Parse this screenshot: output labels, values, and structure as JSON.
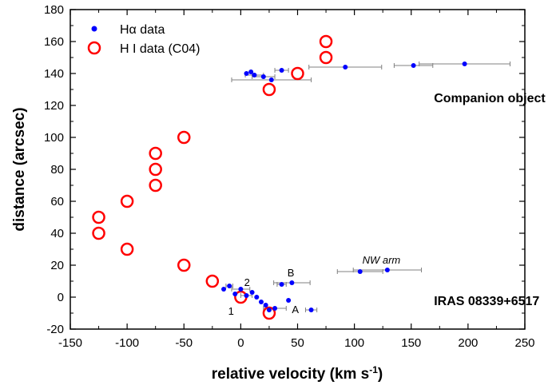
{
  "chart_data": {
    "type": "scatter",
    "xlabel": "relative velocity (km s",
    "xlabel_sup": "-1",
    "xlabel_close": ")",
    "ylabel": "distance (arcsec)",
    "xlim": [
      -150,
      250
    ],
    "ylim": [
      -20,
      180
    ],
    "xticks": [
      "-150",
      "-100",
      "-50",
      "0",
      "50",
      "100",
      "150",
      "200",
      "250"
    ],
    "yticks": [
      "-20",
      "0",
      "20",
      "40",
      "60",
      "80",
      "100",
      "120",
      "140",
      "160",
      "180"
    ],
    "legend_position": "top-left",
    "colors": {
      "halpha": "#0000ff",
      "hi": "#ff0000",
      "errorbar": "#808080"
    },
    "series": [
      {
        "name": "Hα data",
        "marker": "filled-circle",
        "points": [
          {
            "x": 5,
            "xerr": 0,
            "y": 140
          },
          {
            "x": 9,
            "xerr": 0,
            "y": 141
          },
          {
            "x": 12,
            "xerr": 8,
            "y": 139
          },
          {
            "x": 20,
            "xerr": 10,
            "y": 138
          },
          {
            "x": 27,
            "xerr": 35,
            "y": 136
          },
          {
            "x": 36,
            "xerr": 6,
            "y": 142
          },
          {
            "x": 92,
            "xerr": 32,
            "y": 144
          },
          {
            "x": 152,
            "xerr": 17,
            "y": 145
          },
          {
            "x": 197,
            "xerr": 40,
            "y": 146
          },
          {
            "x": -15,
            "xerr": 0,
            "y": 5
          },
          {
            "x": -10,
            "xerr": 3,
            "y": 7
          },
          {
            "x": -5,
            "xerr": 0,
            "y": 2
          },
          {
            "x": 0,
            "xerr": 8,
            "y": 5
          },
          {
            "x": 5,
            "xerr": 5,
            "y": 1
          },
          {
            "x": 10,
            "xerr": 0,
            "y": 3
          },
          {
            "x": 14,
            "xerr": 0,
            "y": 0
          },
          {
            "x": 18,
            "xerr": 0,
            "y": -3
          },
          {
            "x": 22,
            "xerr": 0,
            "y": -5
          },
          {
            "x": 25,
            "xerr": 0,
            "y": -8
          },
          {
            "x": 30,
            "xerr": 10,
            "y": -7
          },
          {
            "x": 42,
            "xerr": 0,
            "y": -2
          },
          {
            "x": 36,
            "xerr": 4,
            "y": 8
          },
          {
            "x": 45,
            "xerr": 16,
            "y": 9
          },
          {
            "x": 62,
            "xerr": 5,
            "y": -8
          },
          {
            "x": 105,
            "xerr": 20,
            "y": 16
          },
          {
            "x": 129,
            "xerr": 30,
            "y": 17
          }
        ]
      },
      {
        "name": "H I data (C04)",
        "marker": "open-circle",
        "points": [
          {
            "x": 75,
            "y": 160
          },
          {
            "x": 75,
            "y": 150
          },
          {
            "x": 50,
            "y": 140
          },
          {
            "x": 25,
            "y": 130
          },
          {
            "x": -50,
            "y": 100
          },
          {
            "x": -75,
            "y": 90
          },
          {
            "x": -75,
            "y": 80
          },
          {
            "x": -75,
            "y": 70
          },
          {
            "x": -100,
            "y": 60
          },
          {
            "x": -125,
            "y": 50
          },
          {
            "x": -125,
            "y": 40
          },
          {
            "x": -100,
            "y": 30
          },
          {
            "x": -50,
            "y": 20
          },
          {
            "x": -25,
            "y": 10
          },
          {
            "x": 0,
            "y": 0
          },
          {
            "x": 25,
            "y": -10
          }
        ]
      }
    ],
    "annotations": [
      {
        "id": "companion",
        "text": "Companion object",
        "x": 170,
        "y": 122,
        "style": "bold",
        "anchor": "start"
      },
      {
        "id": "iras",
        "text": "IRAS 08339+6517",
        "x": 170,
        "y": -5,
        "style": "bold",
        "anchor": "start"
      },
      {
        "id": "nw",
        "text": "NW arm",
        "x": 107,
        "y": 21,
        "style": "italic",
        "anchor": "start"
      },
      {
        "id": "b",
        "text": "B",
        "x": 41,
        "y": 13,
        "style": "normal",
        "anchor": "start"
      },
      {
        "id": "a",
        "text": "A",
        "x": 45,
        "y": -10,
        "style": "normal",
        "anchor": "start"
      },
      {
        "id": "two",
        "text": "2",
        "x": 3,
        "y": 7,
        "style": "normal",
        "anchor": "start"
      },
      {
        "id": "one",
        "text": "1",
        "x": -6,
        "y": -11,
        "style": "normal",
        "anchor": "end"
      }
    ]
  }
}
